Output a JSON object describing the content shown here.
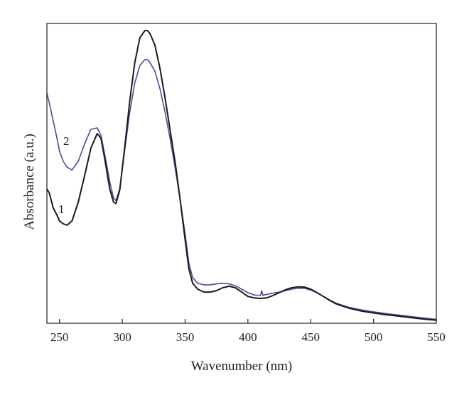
{
  "chart_data": {
    "type": "line",
    "title": "",
    "xlabel": "Wavenumber (nm)",
    "ylabel": "Absorbance (a.u.)",
    "xlim": [
      240,
      550
    ],
    "ylim": [
      0,
      1
    ],
    "x_ticks": [
      "250",
      "300",
      "350",
      "400",
      "450",
      "500",
      "550"
    ],
    "y_ticks": [],
    "grid": false,
    "legend": "none",
    "series": [
      {
        "name": "1",
        "color": "#1a1a1a",
        "x": [
          240,
          242,
          245,
          248,
          250,
          253,
          256,
          260,
          265,
          270,
          275,
          280,
          283,
          286,
          290,
          293,
          295,
          298,
          302,
          306,
          310,
          314,
          318,
          320,
          322,
          326,
          330,
          334,
          338,
          342,
          346,
          350,
          353,
          356,
          360,
          365,
          370,
          375,
          380,
          385,
          390,
          395,
          400,
          405,
          410,
          415,
          420,
          425,
          430,
          435,
          440,
          445,
          450,
          455,
          460,
          465,
          470,
          480,
          490,
          500,
          510,
          520,
          530,
          540,
          550
        ],
        "y": [
          0.455,
          0.44,
          0.39,
          0.365,
          0.345,
          0.335,
          0.33,
          0.345,
          0.41,
          0.5,
          0.595,
          0.645,
          0.63,
          0.56,
          0.455,
          0.41,
          0.405,
          0.45,
          0.6,
          0.76,
          0.89,
          0.975,
          1.0,
          1.0,
          0.99,
          0.95,
          0.87,
          0.77,
          0.66,
          0.55,
          0.42,
          0.28,
          0.18,
          0.13,
          0.11,
          0.1,
          0.1,
          0.105,
          0.115,
          0.12,
          0.115,
          0.1,
          0.085,
          0.08,
          0.078,
          0.08,
          0.088,
          0.098,
          0.108,
          0.115,
          0.118,
          0.117,
          0.11,
          0.098,
          0.085,
          0.072,
          0.06,
          0.045,
          0.035,
          0.028,
          0.022,
          0.017,
          0.012,
          0.007,
          0.003
        ]
      },
      {
        "name": "2",
        "color": "#4a4ba0",
        "x": [
          240,
          242,
          245,
          248,
          250,
          253,
          256,
          260,
          265,
          270,
          275,
          280,
          283,
          286,
          290,
          293,
          295,
          298,
          302,
          306,
          310,
          314,
          318,
          320,
          322,
          326,
          330,
          334,
          338,
          342,
          346,
          350,
          353,
          356,
          360,
          365,
          370,
          375,
          380,
          385,
          390,
          395,
          400,
          405,
          410,
          411,
          412,
          413,
          415,
          420,
          425,
          430,
          435,
          440,
          445,
          450,
          455,
          460,
          465,
          470,
          480,
          490,
          500,
          510,
          520,
          530,
          540,
          550
        ],
        "y": [
          0.785,
          0.75,
          0.69,
          0.63,
          0.585,
          0.55,
          0.53,
          0.52,
          0.55,
          0.61,
          0.66,
          0.665,
          0.64,
          0.575,
          0.48,
          0.425,
          0.415,
          0.455,
          0.59,
          0.72,
          0.82,
          0.88,
          0.9,
          0.9,
          0.89,
          0.86,
          0.8,
          0.72,
          0.63,
          0.53,
          0.42,
          0.3,
          0.2,
          0.15,
          0.13,
          0.125,
          0.125,
          0.128,
          0.13,
          0.128,
          0.122,
          0.11,
          0.098,
          0.09,
          0.088,
          0.105,
          0.088,
          0.09,
          0.092,
          0.096,
          0.1,
          0.105,
          0.11,
          0.113,
          0.113,
          0.107,
          0.097,
          0.085,
          0.073,
          0.062,
          0.048,
          0.039,
          0.032,
          0.026,
          0.021,
          0.016,
          0.011,
          0.006
        ]
      }
    ],
    "annotations": [
      "1",
      "2"
    ]
  }
}
